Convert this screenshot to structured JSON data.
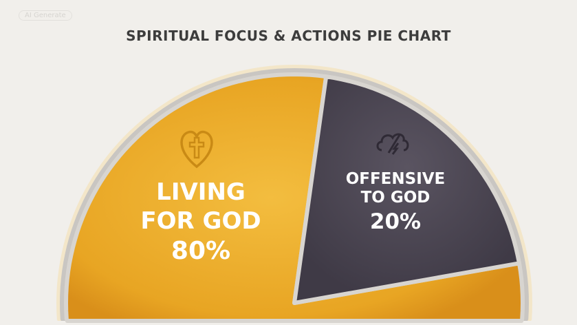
{
  "badge": "AI Generate",
  "chart_data": {
    "type": "pie",
    "title": "SPIRITUAL FOCUS & ACTIONS PIE CHART",
    "slices": [
      {
        "label_lines": [
          "LIVING",
          "FOR GOD"
        ],
        "value_label": "80%",
        "value": 80,
        "color": "#eaa927",
        "icon": "heart-cross-icon"
      },
      {
        "label_lines": [
          "OFFENSIVE",
          "TO GOD"
        ],
        "value_label": "20%",
        "value": 20,
        "color": "#4b4552",
        "icon": "broken-chain-storm-cloud-icon"
      }
    ]
  }
}
